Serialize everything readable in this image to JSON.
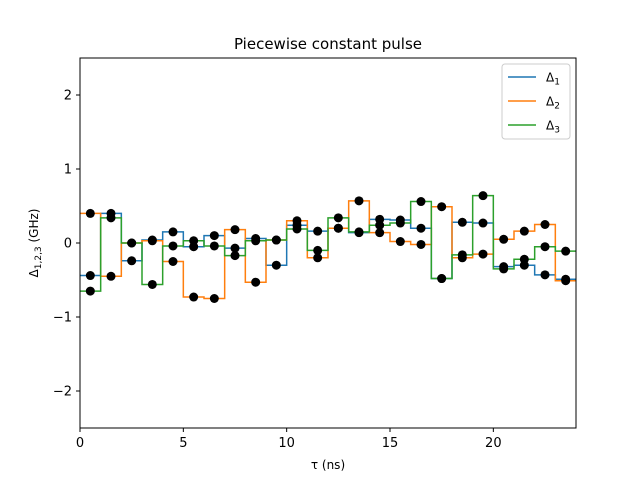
{
  "chart_data": {
    "type": "line",
    "title": "Piecewise constant pulse",
    "xlabel": "τ (ns)",
    "ylabel": {
      "base": "Δ",
      "sub": "1,2,3",
      "unit": " (GHz)"
    },
    "xlim": [
      0,
      24
    ],
    "ylim": [
      -2.5,
      2.5
    ],
    "xticks": [
      0,
      5,
      10,
      15,
      20
    ],
    "yticks": [
      -2,
      -1,
      0,
      1,
      2
    ],
    "grid": false,
    "legend_position": "top-right",
    "marker_color": "#000000",
    "segment_width_ns": 1,
    "sample_times": [
      0.5,
      1.5,
      2.5,
      3.5,
      4.5,
      5.5,
      6.5,
      7.5,
      8.5,
      9.5,
      10.5,
      11.5,
      12.5,
      13.5,
      14.5,
      15.5,
      16.5,
      17.5,
      18.5,
      19.5,
      20.5,
      21.5,
      22.5,
      23.5
    ],
    "series": [
      {
        "name": "Δ",
        "sub": "1",
        "color": "#1f77b4",
        "values": [
          -0.44,
          0.4,
          -0.24,
          0.04,
          0.15,
          -0.05,
          0.1,
          -0.07,
          0.06,
          -0.3,
          0.24,
          0.16,
          0.2,
          0.14,
          0.32,
          0.31,
          0.2,
          -0.48,
          0.28,
          0.27,
          -0.32,
          -0.3,
          -0.43,
          -0.49
        ]
      },
      {
        "name": "Δ",
        "sub": "2",
        "color": "#ff7f0e",
        "values": [
          0.4,
          -0.45,
          0.0,
          0.03,
          -0.25,
          -0.73,
          -0.75,
          0.18,
          -0.53,
          0.04,
          0.3,
          -0.2,
          0.2,
          0.57,
          0.14,
          0.02,
          -0.02,
          0.49,
          -0.2,
          -0.15,
          0.05,
          0.16,
          0.25,
          -0.51
        ]
      },
      {
        "name": "Δ",
        "sub": "3",
        "color": "#2ca02c",
        "values": [
          -0.65,
          0.34,
          0.0,
          -0.56,
          -0.04,
          0.03,
          -0.04,
          -0.17,
          0.03,
          0.04,
          0.19,
          -0.1,
          0.34,
          0.15,
          0.24,
          0.27,
          0.56,
          -0.48,
          -0.16,
          0.64,
          -0.35,
          -0.22,
          -0.05,
          -0.11
        ]
      }
    ]
  }
}
